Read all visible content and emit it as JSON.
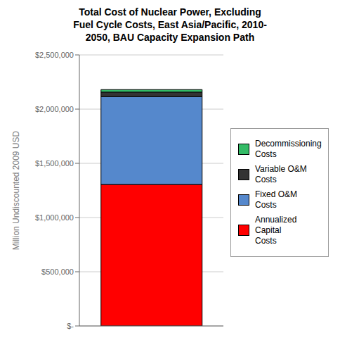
{
  "chart_data": {
    "type": "bar",
    "title": "Total Cost of Nuclear Power, Excluding\nFuel Cycle Costs, East Asia/Pacific, 2010-\n2050, BAU Capacity Expansion Path",
    "y_label": "Million Undiscounted 2009 USD",
    "categories": [
      null
    ],
    "stacked": true,
    "series": [
      {
        "name": "Annualized Capital\nCosts",
        "color": "#FF0000",
        "values": [
          1305000
        ]
      },
      {
        "name": "Fixed O&M Costs",
        "color": "#5588CC",
        "values": [
          810000
        ]
      },
      {
        "name": "Variable O&M Costs",
        "color": "#333333",
        "values": [
          42000
        ]
      },
      {
        "name": "Decommissioning\nCosts",
        "color": "#33BB66",
        "values": [
          23000
        ]
      }
    ],
    "ylim": [
      0,
      2500000
    ],
    "yticks": [
      {
        "value": 0,
        "label": "$-"
      },
      {
        "value": 500000,
        "label": "$500,000"
      },
      {
        "value": 1000000,
        "label": "$1,000,000"
      },
      {
        "value": 1500000,
        "label": "$1,500,000"
      },
      {
        "value": 2000000,
        "label": "$2,000,000"
      },
      {
        "value": 2500000,
        "label": "$2,500,000"
      }
    ],
    "grid": true,
    "legend": "right",
    "tick_labels": "y"
  }
}
